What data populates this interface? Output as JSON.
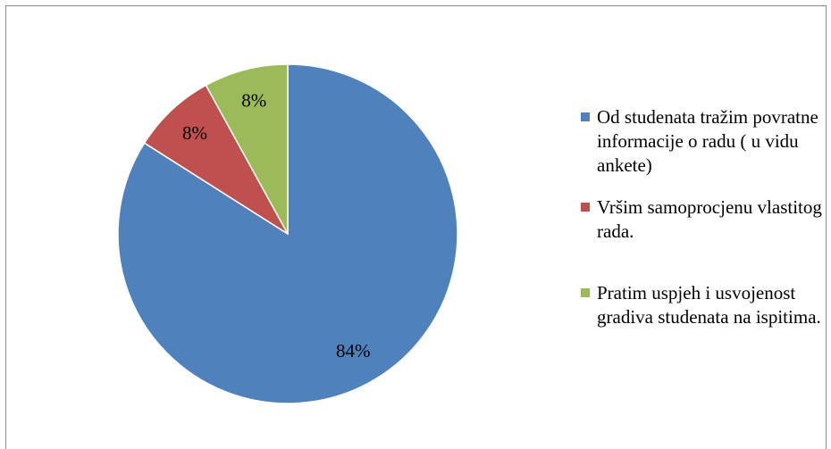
{
  "chart_data": {
    "type": "pie",
    "categories": [
      "Od studenata tražim povratne informacije o radu ( u vidu ankete)",
      "Vršim samoprocjenu vlastitog rada.",
      "Pratim uspjeh i usvojenost gradiva studenata na ispitima."
    ],
    "values": [
      84,
      8,
      8
    ],
    "value_labels": [
      "84%",
      "8%",
      "8%"
    ],
    "colors": [
      "#4f81bd",
      "#c0504d",
      "#9bbb59"
    ],
    "legend": "right"
  }
}
